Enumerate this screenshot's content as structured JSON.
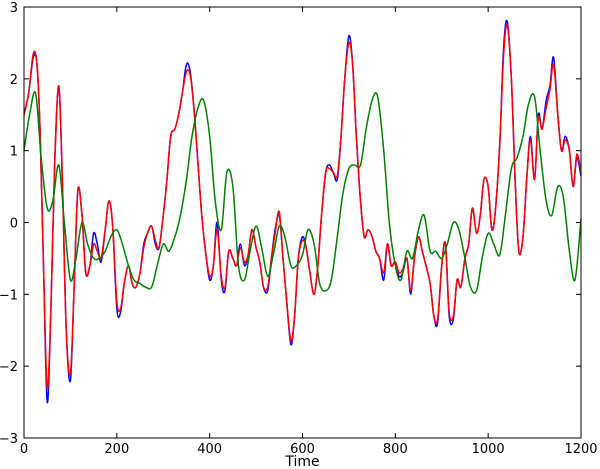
{
  "chart_data": {
    "type": "line",
    "title": "",
    "xlabel": "Time",
    "ylabel": "",
    "xlim": [
      0,
      1200
    ],
    "ylim": [
      -3,
      3
    ],
    "xticks": [
      0,
      200,
      400,
      600,
      800,
      1000,
      1200
    ],
    "yticks": [
      -3,
      -2,
      -1,
      0,
      1,
      2,
      3
    ],
    "xtick_labels": [
      "0",
      "200",
      "400",
      "600",
      "800",
      "1000",
      "1200"
    ],
    "ytick_labels": [
      "−3",
      "−2",
      "−1",
      "0",
      "1",
      "2",
      "3"
    ],
    "grid": false,
    "legend": "none",
    "series": [
      {
        "color": "#0000ff",
        "x": [
          0,
          10,
          20,
          28,
          35,
          42,
          50,
          58,
          66,
          75,
          83,
          91,
          100,
          108,
          116,
          125,
          133,
          142,
          150,
          158,
          166,
          175,
          183,
          191,
          200,
          208,
          216,
          225,
          233,
          241,
          250,
          258,
          266,
          275,
          283,
          291,
          300,
          308,
          316,
          325,
          333,
          341,
          350,
          358,
          366,
          375,
          383,
          391,
          400,
          408,
          416,
          425,
          433,
          441,
          450,
          458,
          466,
          475,
          483,
          491,
          500,
          508,
          516,
          525,
          533,
          541,
          550,
          558,
          566,
          575,
          583,
          591,
          600,
          608,
          616,
          625,
          633,
          641,
          650,
          658,
          666,
          675,
          683,
          691,
          700,
          708,
          716,
          725,
          733,
          741,
          750,
          758,
          766,
          775,
          783,
          791,
          800,
          808,
          816,
          825,
          833,
          841,
          850,
          858,
          866,
          875,
          883,
          891,
          900,
          908,
          916,
          925,
          933,
          941,
          950,
          958,
          966,
          975,
          983,
          991,
          1000,
          1008,
          1016,
          1025,
          1033,
          1041,
          1050,
          1058,
          1066,
          1075,
          1083,
          1091,
          1100,
          1108,
          1116,
          1125,
          1133,
          1141,
          1150,
          1158,
          1166,
          1175,
          1183,
          1191,
          1200
        ],
        "y": [
          1.5,
          1.8,
          2.3,
          2.2,
          1.2,
          -0.6,
          -2.5,
          -1.2,
          0.8,
          1.9,
          0.5,
          -1.5,
          -2.2,
          -0.9,
          0.45,
          0.1,
          -0.7,
          -0.6,
          -0.15,
          -0.3,
          -0.55,
          -0.1,
          0.3,
          -0.05,
          -1.2,
          -1.25,
          -0.85,
          -0.6,
          -0.85,
          -0.9,
          -0.7,
          -0.3,
          -0.15,
          -0.05,
          -0.3,
          -0.35,
          0.1,
          0.6,
          1.2,
          1.3,
          1.5,
          1.8,
          2.2,
          2.1,
          1.6,
          0.8,
          0.1,
          -0.4,
          -0.8,
          -0.6,
          0.0,
          -0.8,
          -0.95,
          -0.4,
          -0.5,
          -0.6,
          -0.3,
          -0.6,
          -0.45,
          -0.1,
          -0.35,
          -0.55,
          -0.9,
          -0.95,
          -0.5,
          -0.1,
          0.1,
          -0.5,
          -1.1,
          -1.7,
          -1.3,
          -0.5,
          -0.2,
          -0.35,
          -0.7,
          -1.0,
          -0.6,
          0.1,
          0.7,
          0.8,
          0.7,
          0.6,
          1.2,
          2.0,
          2.6,
          2.2,
          1.2,
          0.3,
          -0.2,
          -0.1,
          -0.2,
          -0.4,
          -0.5,
          -0.8,
          -0.3,
          -0.6,
          -0.55,
          -0.75,
          -0.7,
          -0.5,
          -1.0,
          -0.5,
          -0.2,
          -0.4,
          -0.6,
          -0.85,
          -1.3,
          -1.4,
          -0.6,
          -0.3,
          -1.3,
          -1.35,
          -0.8,
          -0.9,
          -0.5,
          -0.3,
          0.2,
          -0.15,
          0.1,
          0.6,
          0.5,
          -0.1,
          0.2,
          1.1,
          2.4,
          2.8,
          2.0,
          0.6,
          -0.4,
          -0.2,
          0.6,
          1.2,
          0.6,
          1.5,
          1.3,
          1.7,
          1.9,
          2.3,
          1.5,
          1.0,
          1.2,
          1.0,
          0.5,
          0.9,
          0.65
        ],
        "__note_ignore__": ""
      },
      {
        "color": "#ff0000",
        "x": [
          0,
          10,
          20,
          28,
          35,
          42,
          50,
          58,
          66,
          75,
          83,
          91,
          100,
          108,
          116,
          125,
          133,
          142,
          150,
          158,
          166,
          175,
          183,
          191,
          200,
          208,
          216,
          225,
          233,
          241,
          250,
          258,
          266,
          275,
          283,
          291,
          300,
          308,
          316,
          325,
          333,
          341,
          350,
          358,
          366,
          375,
          383,
          391,
          400,
          408,
          416,
          425,
          433,
          441,
          450,
          458,
          466,
          475,
          483,
          491,
          500,
          508,
          516,
          525,
          533,
          541,
          550,
          558,
          566,
          575,
          583,
          591,
          600,
          608,
          616,
          625,
          633,
          641,
          650,
          658,
          666,
          675,
          683,
          691,
          700,
          708,
          716,
          725,
          733,
          741,
          750,
          758,
          766,
          775,
          783,
          791,
          800,
          808,
          816,
          825,
          833,
          841,
          850,
          858,
          866,
          875,
          883,
          891,
          900,
          908,
          916,
          925,
          933,
          941,
          950,
          958,
          966,
          975,
          983,
          991,
          1000,
          1008,
          1016,
          1025,
          1033,
          1041,
          1050,
          1058,
          1066,
          1075,
          1083,
          1091,
          1100,
          1108,
          1116,
          1125,
          1133,
          1141,
          1150,
          1158,
          1166,
          1175,
          1183,
          1191,
          1200
        ],
        "y": [
          1.5,
          1.8,
          2.35,
          2.2,
          1.2,
          -0.6,
          -2.3,
          -1.2,
          0.8,
          1.9,
          0.5,
          -1.5,
          -2.1,
          -0.9,
          0.45,
          0.1,
          -0.7,
          -0.6,
          -0.3,
          -0.4,
          -0.5,
          -0.1,
          0.3,
          -0.05,
          -1.1,
          -1.2,
          -0.85,
          -0.6,
          -0.85,
          -0.9,
          -0.7,
          -0.35,
          -0.15,
          -0.05,
          -0.25,
          -0.35,
          0.1,
          0.6,
          1.2,
          1.3,
          1.5,
          1.8,
          2.1,
          2.05,
          1.6,
          0.8,
          0.1,
          -0.4,
          -0.75,
          -0.6,
          -0.1,
          -0.75,
          -0.9,
          -0.4,
          -0.5,
          -0.6,
          -0.35,
          -0.55,
          -0.45,
          -0.1,
          -0.35,
          -0.55,
          -0.9,
          -0.9,
          -0.5,
          -0.15,
          0.15,
          -0.5,
          -1.1,
          -1.65,
          -1.3,
          -0.5,
          -0.25,
          -0.35,
          -0.7,
          -1.0,
          -0.6,
          0.1,
          0.7,
          0.75,
          0.7,
          0.65,
          1.2,
          2.0,
          2.5,
          2.2,
          1.2,
          0.3,
          -0.2,
          -0.1,
          -0.2,
          -0.4,
          -0.5,
          -0.7,
          -0.3,
          -0.6,
          -0.55,
          -0.7,
          -0.65,
          -0.5,
          -0.95,
          -0.5,
          -0.2,
          -0.4,
          -0.6,
          -0.85,
          -1.3,
          -1.35,
          -0.6,
          -0.3,
          -1.25,
          -1.3,
          -0.8,
          -0.9,
          -0.5,
          -0.3,
          0.2,
          -0.15,
          0.1,
          0.6,
          0.5,
          -0.1,
          0.2,
          1.1,
          2.3,
          2.75,
          2.0,
          0.6,
          -0.4,
          -0.2,
          0.6,
          1.15,
          0.6,
          1.45,
          1.3,
          1.6,
          1.85,
          2.2,
          1.5,
          1.0,
          1.15,
          1.0,
          0.5,
          0.95,
          0.7
        ]
      },
      {
        "color": "#008000",
        "x": [
          0,
          12,
          25,
          37,
          50,
          62,
          75,
          87,
          100,
          112,
          125,
          137,
          150,
          162,
          175,
          187,
          200,
          212,
          225,
          237,
          250,
          262,
          275,
          287,
          300,
          312,
          325,
          337,
          350,
          362,
          375,
          387,
          400,
          412,
          425,
          437,
          450,
          462,
          475,
          487,
          500,
          512,
          525,
          537,
          550,
          562,
          575,
          587,
          600,
          612,
          625,
          637,
          650,
          662,
          675,
          687,
          700,
          712,
          725,
          737,
          750,
          762,
          775,
          787,
          800,
          812,
          825,
          837,
          850,
          862,
          875,
          887,
          900,
          912,
          925,
          937,
          950,
          962,
          975,
          987,
          1000,
          1012,
          1025,
          1037,
          1050,
          1062,
          1075,
          1087,
          1100,
          1112,
          1125,
          1137,
          1150,
          1162,
          1175,
          1187,
          1200
        ],
        "y": [
          1.0,
          1.5,
          1.8,
          0.9,
          0.2,
          0.3,
          0.8,
          0.0,
          -0.8,
          -0.5,
          0.0,
          -0.3,
          -0.5,
          -0.5,
          -0.4,
          -0.2,
          -0.1,
          -0.3,
          -0.6,
          -0.8,
          -0.85,
          -0.9,
          -0.9,
          -0.6,
          -0.3,
          -0.4,
          -0.2,
          0.1,
          0.6,
          1.2,
          1.6,
          1.7,
          1.2,
          0.3,
          -0.1,
          0.7,
          0.5,
          -0.6,
          -0.8,
          -0.4,
          -0.05,
          -0.35,
          -0.75,
          -0.45,
          -0.05,
          -0.2,
          -0.6,
          -0.6,
          -0.45,
          -0.1,
          -0.3,
          -0.85,
          -0.95,
          -0.8,
          -0.2,
          0.4,
          0.75,
          0.8,
          0.8,
          1.3,
          1.7,
          1.75,
          1.0,
          0.0,
          -0.6,
          -0.8,
          -0.4,
          -0.5,
          -0.1,
          0.1,
          -0.4,
          -0.4,
          -0.5,
          -0.3,
          0.0,
          -0.1,
          -0.5,
          -0.9,
          -0.95,
          -0.5,
          -0.15,
          -0.3,
          -0.45,
          0.1,
          0.75,
          0.9,
          1.2,
          1.65,
          1.75,
          1.0,
          0.3,
          0.1,
          0.5,
          0.35,
          -0.4,
          -0.8,
          0.05
        ]
      }
    ]
  }
}
